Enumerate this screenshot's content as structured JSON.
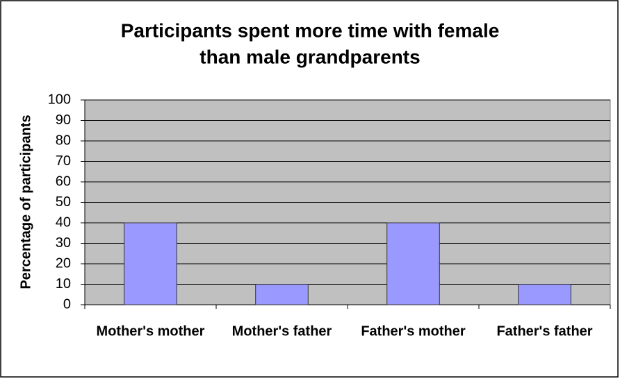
{
  "chart_data": {
    "type": "bar",
    "title": [
      "Participants spent more time with female",
      "than male grandparents"
    ],
    "y_label": "Percentage of participants",
    "categories": [
      "Mother's mother",
      "Mother's father",
      "Father's mother",
      "Father's father"
    ],
    "values": [
      40,
      10,
      40,
      10
    ],
    "color": "#9999ff",
    "ylim": [
      0,
      100
    ],
    "yticks": [
      0,
      10,
      20,
      30,
      40,
      50,
      60,
      70,
      80,
      90,
      100
    ],
    "grid": true
  }
}
